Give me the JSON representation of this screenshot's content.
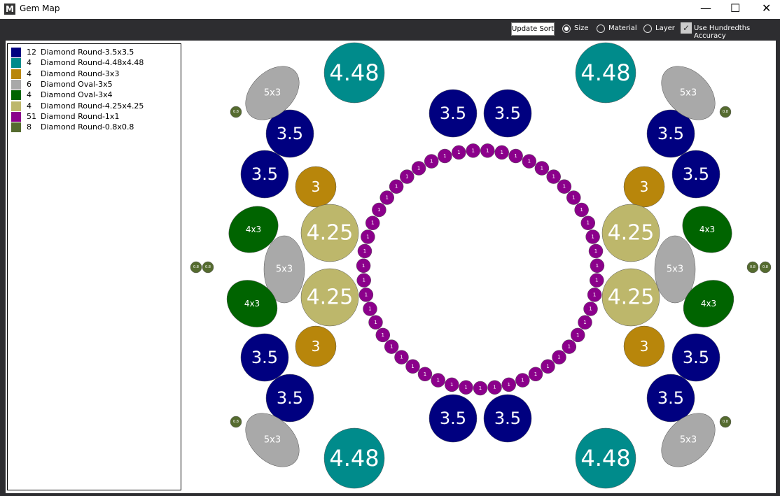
{
  "window": {
    "title": "Gem Map"
  },
  "toolbar": {
    "update_sort": "Update Sort",
    "size": "Size",
    "material": "Material",
    "layer": "Layer",
    "hundredths": "Use Hundredths Accuracy"
  },
  "legend": {
    "items": [
      {
        "count": "12",
        "name": "Diamond Round-3.5x3.5",
        "color": "#000080",
        "gem_labels": [
          "3.5",
          "3.5",
          "3.5",
          "3.5",
          "3.5",
          "3.5",
          "3.5",
          "3.5",
          "3.5",
          "3.5",
          "3.5",
          "3.5"
        ]
      },
      {
        "count": "4",
        "name": "Diamond Round-4.48x4.48",
        "color": "#008b8b",
        "gem_labels": [
          "4.48",
          "4.48",
          "4.48",
          "4.48"
        ]
      },
      {
        "count": "4",
        "name": "Diamond Round-3x3",
        "color": "#b8860b",
        "gem_labels": [
          "3",
          "3",
          "3",
          "3"
        ]
      },
      {
        "count": "6",
        "name": "Diamond Oval-3x5",
        "color": "#a9a9a9",
        "gem_labels": [
          "5x3",
          "5x3",
          "5x3",
          "5x3",
          "5x3",
          "5x3"
        ]
      },
      {
        "count": "4",
        "name": "Diamond Oval-3x4",
        "color": "#006400",
        "gem_labels": [
          "4x3",
          "4x3",
          "4x3",
          "4x3"
        ]
      },
      {
        "count": "4",
        "name": "Diamond Round-4.25x4.25",
        "color": "#bdb76b",
        "gem_labels": [
          "4.25",
          "4.25",
          "4.25",
          "4.25"
        ]
      },
      {
        "count": "51",
        "name": "Diamond Round-1x1",
        "color": "#8b008b",
        "gem_labels": [
          "1",
          "1",
          "1",
          "1",
          "1",
          "1",
          "1",
          "1",
          "1",
          "1",
          "1",
          "1",
          "1",
          "1",
          "1",
          "1",
          "1",
          "1",
          "1",
          "1",
          "1",
          "1",
          "1",
          "1",
          "1",
          "1",
          "1",
          "1",
          "1",
          "1",
          "1",
          "1",
          "1",
          "1",
          "1",
          "1",
          "1",
          "1",
          "1",
          "1",
          "1",
          "1",
          "1",
          "1",
          "1",
          "1",
          "1",
          "1",
          "1",
          "1",
          "1"
        ]
      },
      {
        "count": "8",
        "name": "Diamond Round-0.8x0.8",
        "color": "#556b2f",
        "gem_labels": [
          "0.8",
          "0.8",
          "0.8",
          "0.8",
          "0.8",
          "0.8",
          "0.8",
          "0.8"
        ]
      }
    ]
  }
}
